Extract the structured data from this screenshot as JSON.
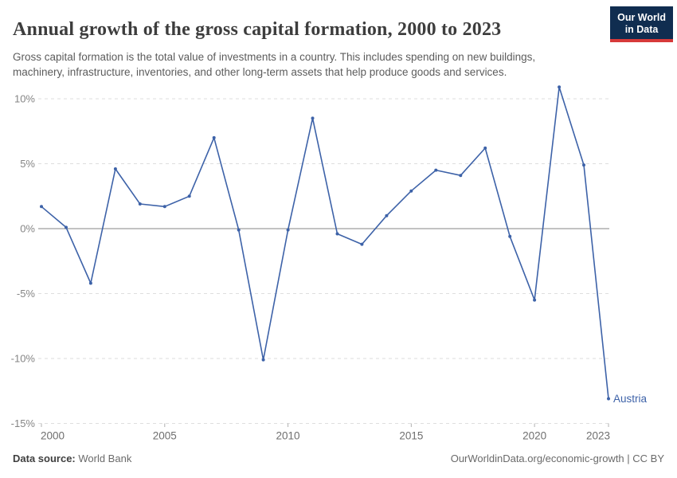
{
  "header": {
    "title": "Annual growth of the gross capital formation, 2000 to 2023",
    "subtitle": "Gross capital formation is the total value of investments in a country. This includes spending on new buildings, machinery, infrastructure, inventories, and other long-term assets that help produce goods and services.",
    "logo": {
      "line1": "Our World",
      "line2": "in Data",
      "bg_color": "#102d50",
      "accent_color": "#d73a3a"
    }
  },
  "chart_data": {
    "type": "line",
    "title": "Annual growth of the gross capital formation, 2000 to 2023",
    "x": [
      2000,
      2001,
      2002,
      2003,
      2004,
      2005,
      2006,
      2007,
      2008,
      2009,
      2010,
      2011,
      2012,
      2013,
      2014,
      2015,
      2016,
      2017,
      2018,
      2019,
      2020,
      2021,
      2022,
      2023
    ],
    "series": [
      {
        "name": "Austria",
        "color": "#3d62a8",
        "values": [
          1.7,
          0.1,
          -4.2,
          4.6,
          1.9,
          1.7,
          2.5,
          7.0,
          -0.1,
          -10.1,
          -0.1,
          8.5,
          -0.4,
          -1.2,
          1.0,
          2.9,
          4.5,
          4.1,
          6.2,
          -0.6,
          -5.5,
          10.9,
          4.9,
          -13.1
        ]
      }
    ],
    "x_ticks": [
      2000,
      2005,
      2010,
      2015,
      2020,
      2023
    ],
    "y_ticks": [
      10,
      5,
      0,
      -5,
      -10,
      -15
    ],
    "y_suffix": "%",
    "xlim": [
      2000,
      2023
    ],
    "ylim": [
      -15,
      11
    ],
    "grid": "dashed-horizontal",
    "legend": "end-of-line-label",
    "colors": {
      "gridline": "#dedede",
      "zero_line": "#9e9e9e",
      "tick": "#b0b0b0",
      "y_label": "#858585",
      "x_label": "#6f6f6f"
    }
  },
  "footer": {
    "source_label": "Data source:",
    "source_value": " World Bank",
    "credit": "OurWorldinData.org/economic-growth | CC BY"
  }
}
